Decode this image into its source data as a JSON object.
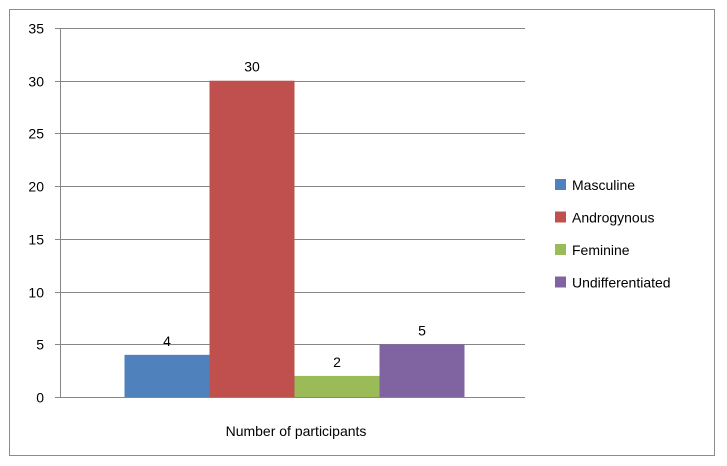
{
  "chart_data": {
    "type": "bar",
    "categories": [
      "Number of participants"
    ],
    "series": [
      {
        "name": "Masculine",
        "values": [
          4
        ],
        "color": "#4F81BD"
      },
      {
        "name": "Androgynous",
        "values": [
          30
        ],
        "color": "#C0504D"
      },
      {
        "name": "Feminine",
        "values": [
          2
        ],
        "color": "#9BBB59"
      },
      {
        "name": "Undifferentiated",
        "values": [
          5
        ],
        "color": "#8064A2"
      }
    ],
    "y_ticks": [
      "0",
      "5",
      "10",
      "15",
      "20",
      "25",
      "30",
      "35"
    ],
    "data_labels": [
      "4",
      "30",
      "2",
      "5"
    ],
    "xlabel": "Number of participants",
    "ylim": [
      0,
      35
    ],
    "grid": true,
    "legend_position": "right"
  }
}
